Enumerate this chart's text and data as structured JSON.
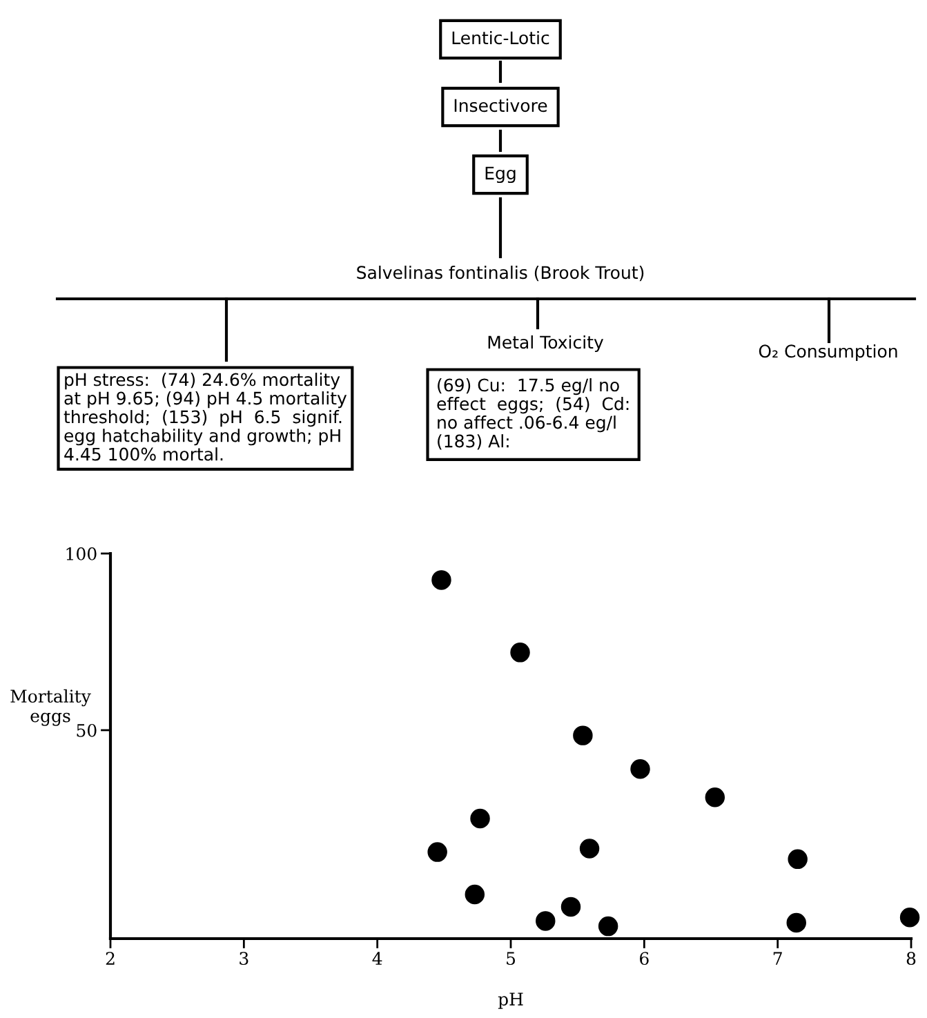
{
  "chart_data": {
    "type": "scatter",
    "xlabel": "pH",
    "ylabel": "Mortality\neggs",
    "annotations": [
      "Lentic-Lotic",
      "Insectivore",
      "Egg",
      "Salvelinas fontinalis (Brook Trout)",
      "Metal Toxicity",
      "O₂ Consumption",
      "pH stress:  (74) 24.6% mortality\nat pH 9.65; (94) pH 4.5 mortality\nthreshold;  (153)  pH  6.5  signif.\negg hatchability and growth; pH\n4.45 100% mortal.",
      "(69) Cu:  17.5 eg/l no\neffect  eggs;  (54)  Cd:\nno affect .06-6.4 eg/l\n(183) Al:"
    ],
    "x": [
      4.48,
      5.07,
      5.54,
      5.97,
      6.53,
      4.77,
      4.45,
      5.59,
      7.15,
      4.73,
      5.45,
      5.26,
      5.73,
      7.14,
      7.99
    ],
    "values": [
      92.5,
      72,
      48.5,
      39,
      31,
      25,
      15.5,
      16.5,
      13.5,
      3.5,
      0,
      -4,
      -5.5,
      -4.5,
      -3
    ],
    "color": "#000000",
    "marker": "circle",
    "xlim": [
      2,
      8
    ],
    "xticks": [
      2,
      3,
      4,
      5,
      6,
      7,
      8
    ],
    "ylim": [
      -9,
      100
    ],
    "yticks": [
      50,
      100
    ],
    "grid": false
  }
}
